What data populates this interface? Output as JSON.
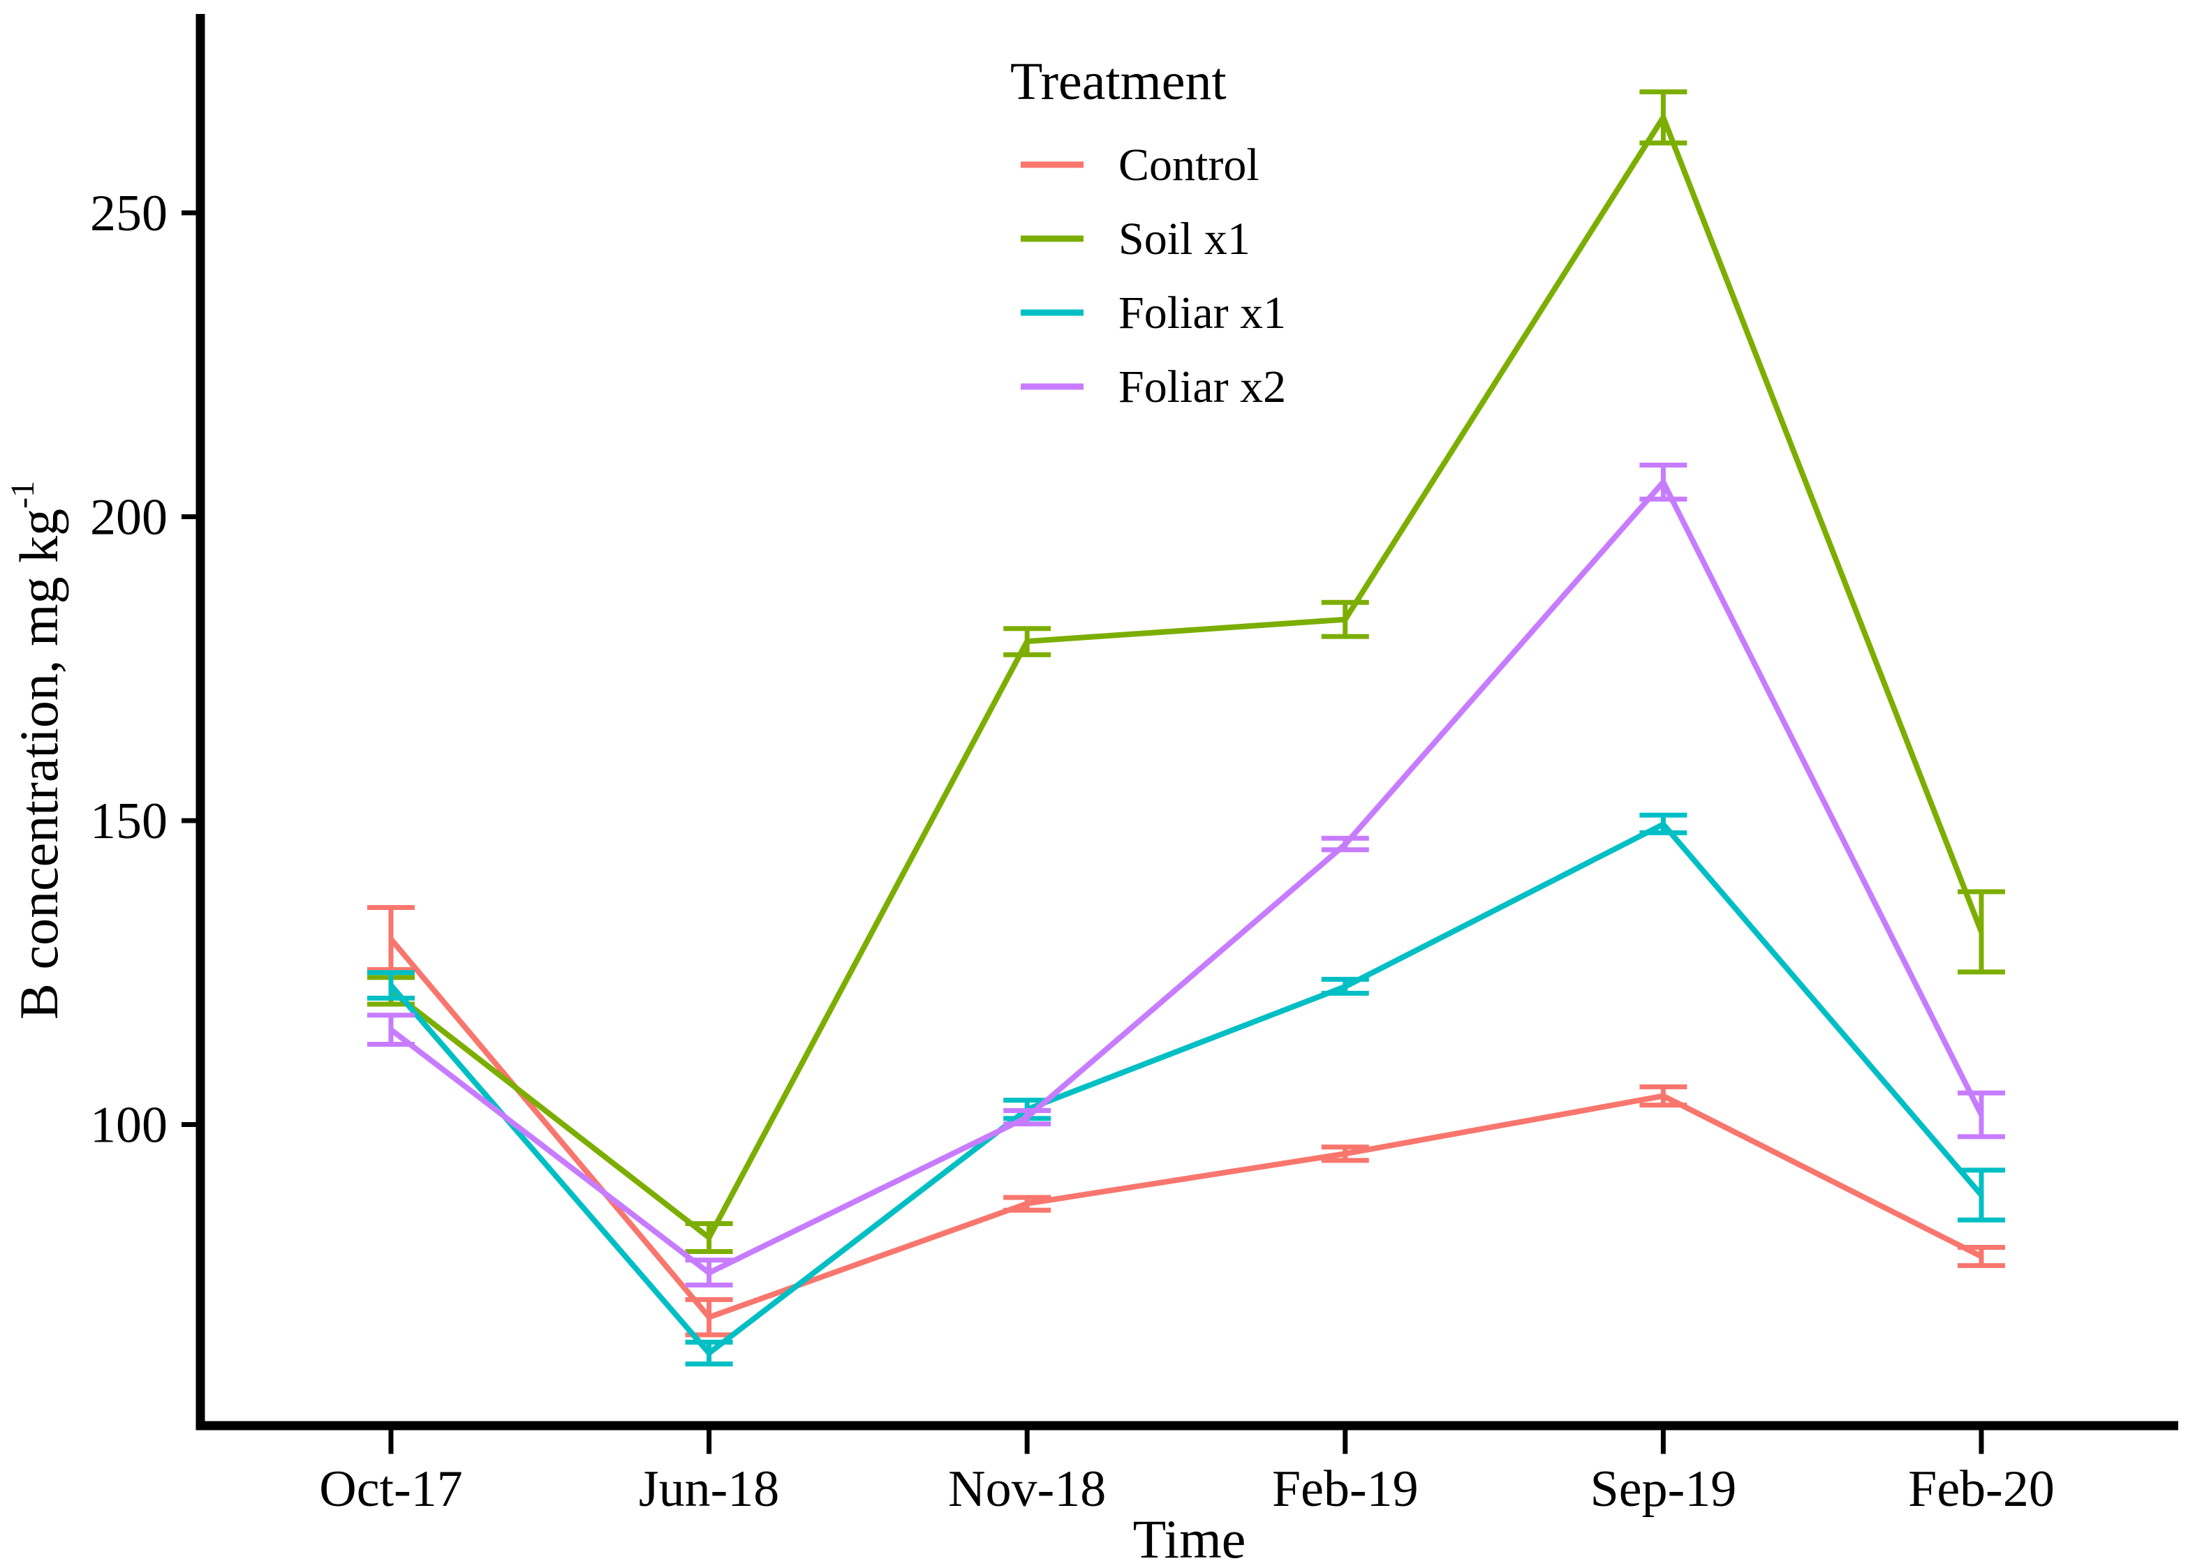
{
  "chart_data": {
    "type": "line",
    "title": "",
    "xlabel": "Time",
    "ylabel": "B concentration, mg kg",
    "ylabel_superscript": "-1",
    "legend_title": "Treatment",
    "legend_position": "inside-top-center",
    "grid": false,
    "error_bars": true,
    "background_color": "#FFFFFF",
    "axis_color": "#000000",
    "text_color": "#000000",
    "categories": [
      "Oct-17",
      "Jun-18",
      "Nov-18",
      "Feb-19",
      "Sep-19",
      "Feb-20"
    ],
    "y_ticks": [
      100,
      150,
      200,
      250
    ],
    "ylim": [
      50,
      282
    ],
    "series": [
      {
        "name": "Control",
        "color": "#F8766D",
        "values": [
          130.5,
          68.3,
          87.0,
          95.2,
          104.7,
          78.3
        ],
        "error_low": [
          125.5,
          65.4,
          85.9,
          94.1,
          103.2,
          76.8
        ],
        "error_high": [
          135.7,
          71.2,
          88.0,
          96.3,
          106.2,
          79.8
        ]
      },
      {
        "name": "Soil x1",
        "color": "#7CAE00",
        "values": [
          122.0,
          81.4,
          179.5,
          183.1,
          265.7,
          131.7
        ],
        "error_low": [
          119.8,
          79.1,
          177.3,
          180.3,
          261.5,
          125.1
        ],
        "error_high": [
          124.2,
          83.7,
          181.6,
          185.9,
          269.9,
          138.3
        ]
      },
      {
        "name": "Foliar x1",
        "color": "#00BFC4",
        "values": [
          122.9,
          62.4,
          102.5,
          122.7,
          149.4,
          88.4
        ],
        "error_low": [
          120.8,
          60.6,
          101.0,
          121.6,
          148.0,
          84.3
        ],
        "error_high": [
          125.0,
          64.2,
          104.0,
          123.9,
          150.9,
          92.5
        ]
      },
      {
        "name": "Foliar x2",
        "color": "#C77CFF",
        "values": [
          115.6,
          75.6,
          101.2,
          146.1,
          205.7,
          101.6
        ],
        "error_low": [
          113.2,
          73.6,
          100.1,
          145.2,
          202.9,
          98.0
        ],
        "error_high": [
          118.0,
          77.7,
          102.3,
          147.1,
          208.5,
          105.2
        ]
      }
    ]
  }
}
